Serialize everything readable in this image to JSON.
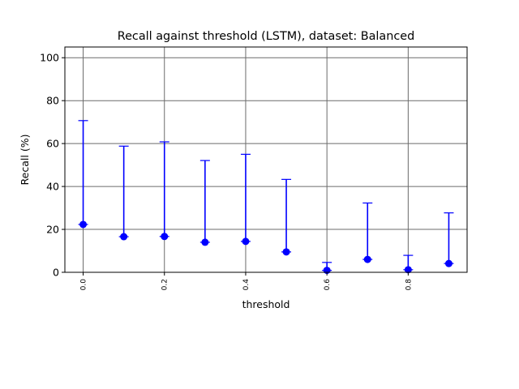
{
  "chart_data": {
    "type": "scatter",
    "title": "Recall against threshold (LSTM), dataset: Balanced",
    "xlabel": "threshold",
    "ylabel": "Recall (%)",
    "xlim": [
      -0.045,
      0.945
    ],
    "ylim": [
      0,
      105
    ],
    "grid": true,
    "x_ticks": [
      0.0,
      0.2,
      0.4,
      0.6,
      0.8
    ],
    "x_tick_labels": [
      "0.0",
      "0.2",
      "0.4",
      "0.6",
      "0.8"
    ],
    "y_ticks": [
      0,
      20,
      40,
      60,
      80,
      100
    ],
    "y_tick_labels": [
      "0",
      "20",
      "40",
      "60",
      "80",
      "100"
    ],
    "series": [
      {
        "x": [
          0.0,
          0.1,
          0.2,
          0.3,
          0.4,
          0.5,
          0.6,
          0.7,
          0.8,
          0.9
        ],
        "y": [
          22.3,
          16.6,
          16.7,
          14.0,
          14.4,
          9.5,
          0.9,
          6.0,
          1.2,
          4.1
        ],
        "err_upper": [
          48.4,
          42.2,
          44.1,
          38.1,
          40.6,
          33.8,
          3.7,
          26.3,
          6.7,
          23.6
        ],
        "err_lower": [
          0,
          0,
          0,
          0,
          0,
          0,
          0,
          0,
          0,
          0
        ],
        "color": "#0000ff"
      }
    ],
    "grid_color": "#6b6b6b"
  }
}
